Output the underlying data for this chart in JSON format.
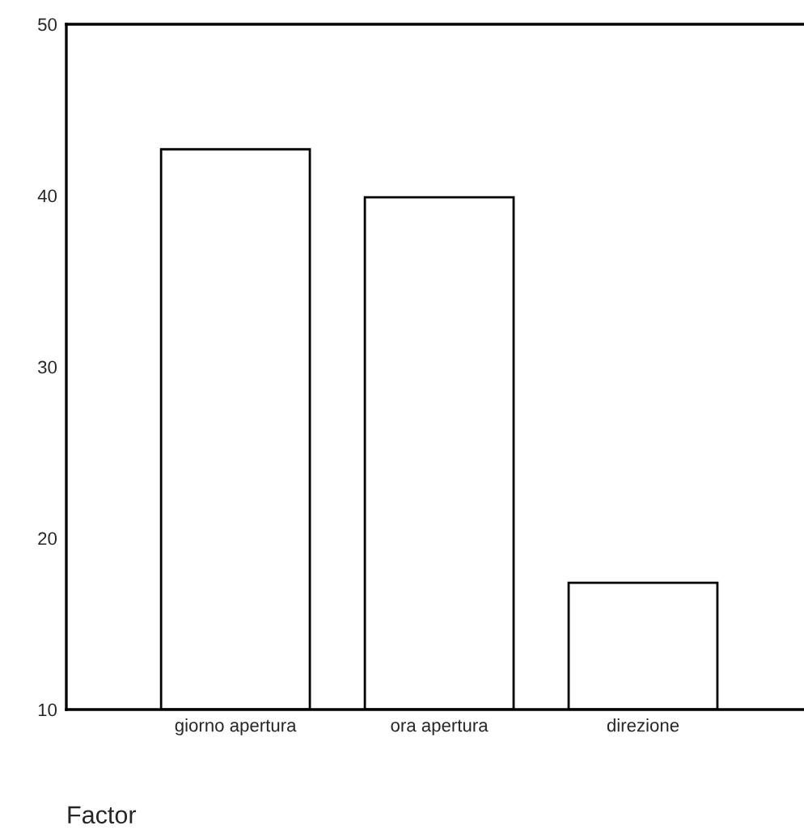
{
  "chart_data": {
    "type": "bar",
    "categories": [
      "giorno apertura",
      "ora apertura",
      "direzione"
    ],
    "values": [
      42.7,
      39.9,
      17.4
    ],
    "color": "#ffffff",
    "ylim": [
      10,
      50
    ],
    "yticks": [
      10,
      20,
      30,
      40,
      50
    ],
    "xlabel": "Factor",
    "grid": false
  }
}
